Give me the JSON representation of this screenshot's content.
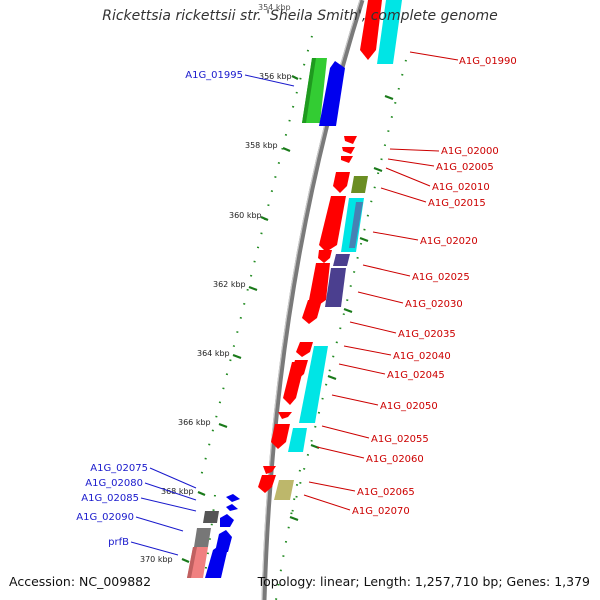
{
  "title": "Rickettsia rickettsii str. 'Sheila Smith', complete genome",
  "accession": "Accession: NC_009882",
  "stats": "Topology: linear; Length: 1,257,710 bp; Genes: 1,379",
  "colors": {
    "backbone": "#808080",
    "tick": "#1a7a1a",
    "label_right": "#cc0000",
    "label_left": "#1a1acc",
    "cds_forward": "#ff0000",
    "cds_reverse": "#0000ff",
    "rna": "#00e5e5",
    "cog_green": "#33cc33",
    "cog_olive": "#6b8e23",
    "cog_slate": "#4682b4",
    "cog_purple": "#4b3f8f",
    "cog_gray": "#555555",
    "cog_pink": "#f08080",
    "cog_khaki": "#bdb76b"
  },
  "ticks": [
    {
      "label": "354 kbp"
    },
    {
      "label": "356 kbp"
    },
    {
      "label": "358 kbp"
    },
    {
      "label": "360 kbp"
    },
    {
      "label": "362 kbp"
    },
    {
      "label": "364 kbp"
    },
    {
      "label": "366 kbp"
    },
    {
      "label": "368 kbp"
    },
    {
      "label": "370 kbp"
    }
  ],
  "genes_right": [
    {
      "label": "A1G_01990"
    },
    {
      "label": "A1G_02000"
    },
    {
      "label": "A1G_02005"
    },
    {
      "label": "A1G_02010"
    },
    {
      "label": "A1G_02015"
    },
    {
      "label": "A1G_02020"
    },
    {
      "label": "A1G_02025"
    },
    {
      "label": "A1G_02030"
    },
    {
      "label": "A1G_02035"
    },
    {
      "label": "A1G_02040"
    },
    {
      "label": "A1G_02045"
    },
    {
      "label": "A1G_02050"
    },
    {
      "label": "A1G_02055"
    },
    {
      "label": "A1G_02060"
    },
    {
      "label": "A1G_02065"
    },
    {
      "label": "A1G_02070"
    }
  ],
  "genes_left": [
    {
      "label": "A1G_01995"
    },
    {
      "label": "A1G_02075"
    },
    {
      "label": "A1G_02080"
    },
    {
      "label": "A1G_02085"
    },
    {
      "label": "A1G_02090"
    },
    {
      "label": "prfB"
    }
  ]
}
